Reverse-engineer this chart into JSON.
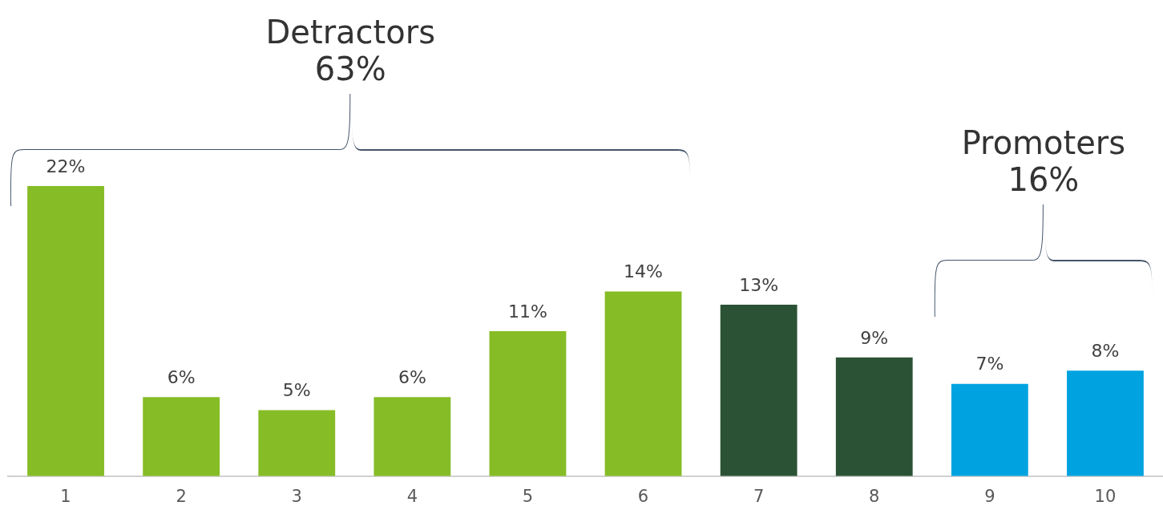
{
  "chart_data": {
    "type": "bar",
    "categories": [
      "1",
      "2",
      "3",
      "4",
      "5",
      "6",
      "7",
      "8",
      "9",
      "10"
    ],
    "values": [
      22,
      6,
      5,
      6,
      11,
      14,
      13,
      9,
      7,
      8
    ],
    "colors": [
      "#86bc25",
      "#86bc25",
      "#86bc25",
      "#86bc25",
      "#86bc25",
      "#86bc25",
      "#2b5234",
      "#2b5234",
      "#00a3e0",
      "#00a3e0"
    ],
    "value_labels": [
      "22%",
      "6%",
      "5%",
      "6%",
      "11%",
      "14%",
      "13%",
      "9%",
      "7%",
      "8%"
    ],
    "annotations": [
      "Detractors\n63%",
      "Promoters\n16%"
    ],
    "grid": false,
    "legend": false
  }
}
